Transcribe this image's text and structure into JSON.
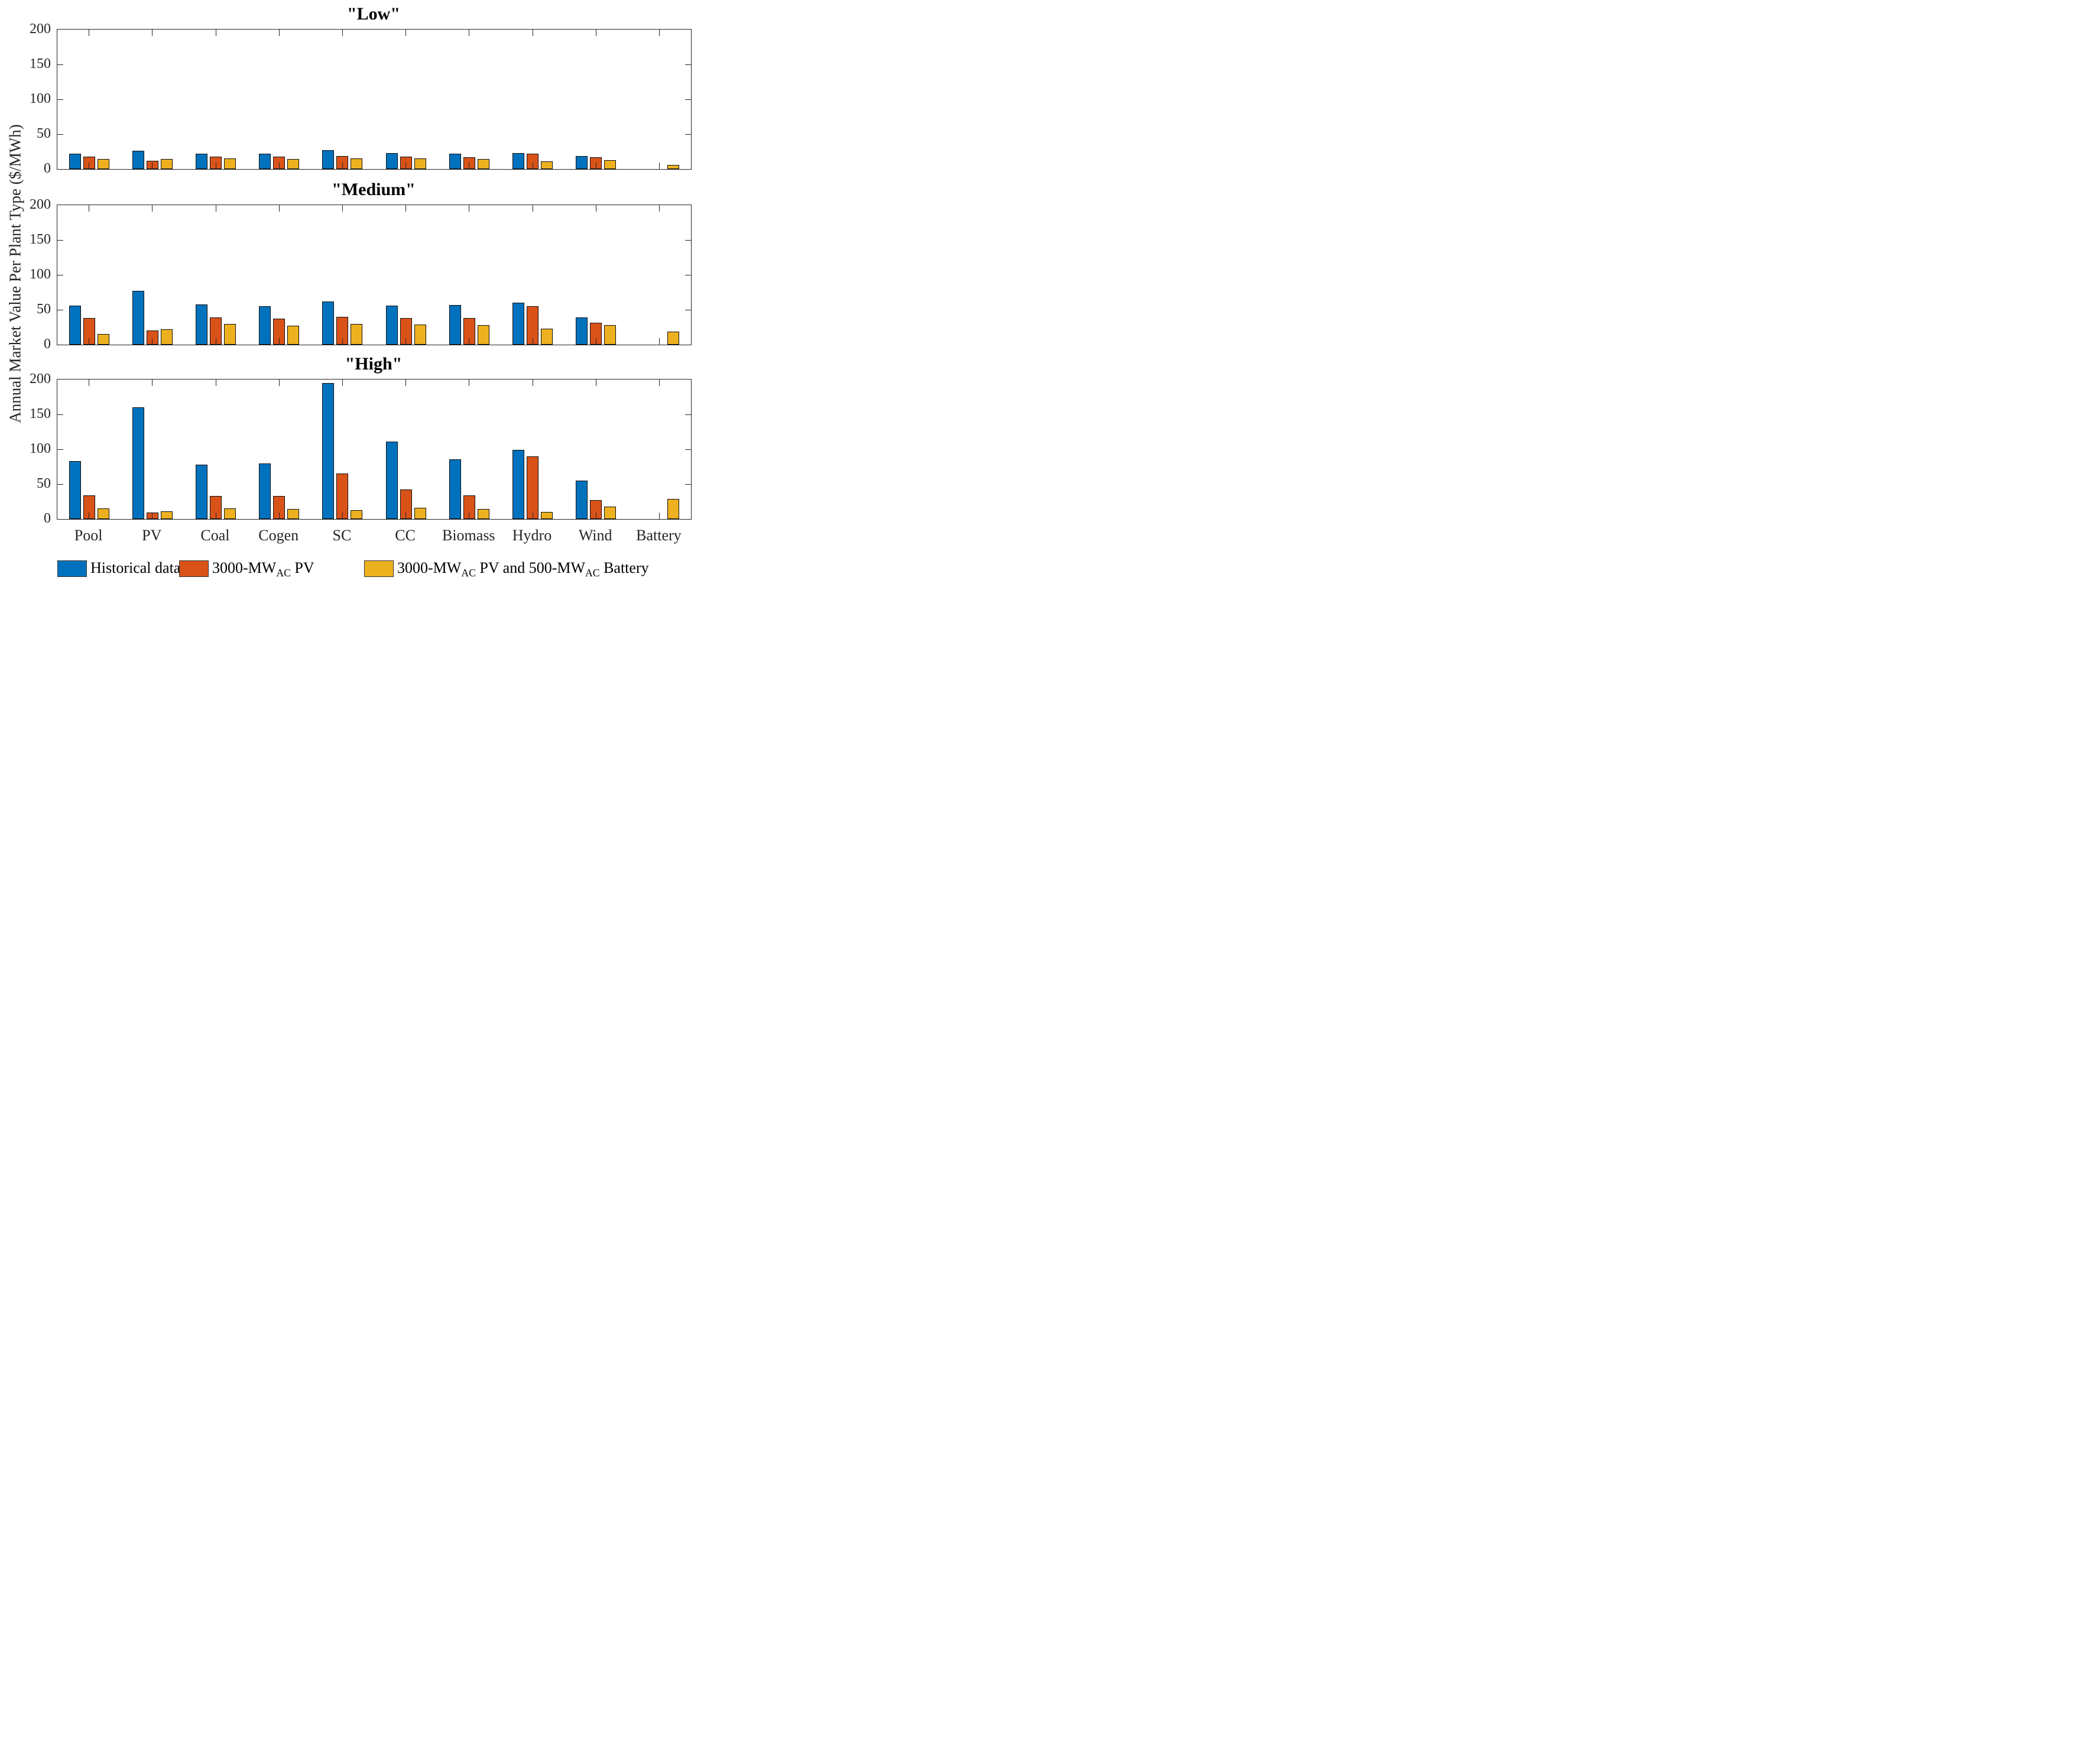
{
  "figure": {
    "ylabel": "Annual Market Value Per Plant Type ($/MWh)"
  },
  "colors": {
    "historical_blue": "#0072BD",
    "pv_orange": "#D95319",
    "pv_battery_yellow": "#EDB120",
    "axis": "#262626"
  },
  "chart_data": [
    {
      "type": "bar",
      "panel": "low",
      "title": "\"Low\"",
      "categories": [
        "Pool",
        "PV",
        "Coal",
        "Cogen",
        "SC",
        "CC",
        "Biomass",
        "Hydro",
        "Wind",
        "Battery"
      ],
      "series": [
        {
          "key": "historical",
          "name": "Historical data",
          "color": "#0072BD",
          "values": [
            22,
            26,
            22,
            22,
            27,
            23,
            22,
            23,
            19,
            0
          ]
        },
        {
          "key": "pv",
          "name": "3000-MWAC PV",
          "color": "#D95319",
          "values": [
            18,
            12,
            18,
            18,
            19,
            18,
            17,
            22,
            17,
            0
          ]
        },
        {
          "key": "pv-battery",
          "name": "3000-MWAC PV and 500-MWAC Battery",
          "color": "#EDB120",
          "values": [
            14,
            14,
            15,
            14,
            15,
            15,
            14,
            11,
            13,
            6
          ]
        }
      ],
      "ylim": [
        0,
        200
      ],
      "yticks": [
        0,
        50,
        100,
        150,
        200
      ],
      "grid": false
    },
    {
      "type": "bar",
      "panel": "medium",
      "title": "\"Medium\"",
      "categories": [
        "Pool",
        "PV",
        "Coal",
        "Cogen",
        "SC",
        "CC",
        "Biomass",
        "Hydro",
        "Wind",
        "Battery"
      ],
      "series": [
        {
          "key": "historical",
          "name": "Historical data",
          "color": "#0072BD",
          "values": [
            56,
            77,
            58,
            55,
            62,
            56,
            57,
            60,
            39,
            0
          ]
        },
        {
          "key": "pv",
          "name": "3000-MWAC PV",
          "color": "#D95319",
          "values": [
            38,
            20,
            39,
            37,
            40,
            38,
            38,
            55,
            31,
            0
          ]
        },
        {
          "key": "pv-battery",
          "name": "3000-MWAC PV and 500-MWAC Battery",
          "color": "#EDB120",
          "values": [
            15,
            22,
            30,
            27,
            30,
            29,
            28,
            23,
            28,
            19
          ]
        }
      ],
      "ylim": [
        0,
        200
      ],
      "yticks": [
        0,
        50,
        100,
        150,
        200
      ],
      "grid": false
    },
    {
      "type": "bar",
      "panel": "high",
      "title": "\"High\"",
      "categories": [
        "Pool",
        "PV",
        "Coal",
        "Cogen",
        "SC",
        "CC",
        "Biomass",
        "Hydro",
        "Wind",
        "Battery"
      ],
      "series": [
        {
          "key": "historical",
          "name": "Historical data",
          "color": "#0072BD",
          "values": [
            83,
            160,
            78,
            80,
            195,
            111,
            86,
            99,
            55,
            0
          ]
        },
        {
          "key": "pv",
          "name": "3000-MWAC PV",
          "color": "#D95319",
          "values": [
            34,
            9,
            33,
            33,
            65,
            42,
            34,
            90,
            27,
            0
          ]
        },
        {
          "key": "pv-battery",
          "name": "3000-MWAC PV and 500-MWAC Battery",
          "color": "#EDB120",
          "values": [
            15,
            11,
            15,
            14,
            13,
            16,
            14,
            10,
            18,
            29
          ]
        }
      ],
      "ylim": [
        0,
        200
      ],
      "yticks": [
        0,
        50,
        100,
        150,
        200
      ],
      "grid": false
    }
  ],
  "legend": {
    "items": [
      {
        "key": "historical",
        "color": "#0072BD",
        "parts": [
          "Historical data",
          "",
          "",
          "",
          ""
        ]
      },
      {
        "key": "pv",
        "color": "#D95319",
        "parts": [
          "3000-MW",
          "AC",
          " PV",
          "",
          ""
        ]
      },
      {
        "key": "pv-battery",
        "color": "#EDB120",
        "parts": [
          "3000-MW",
          "AC",
          " PV and 500-MW",
          "AC",
          " Battery"
        ]
      }
    ]
  }
}
